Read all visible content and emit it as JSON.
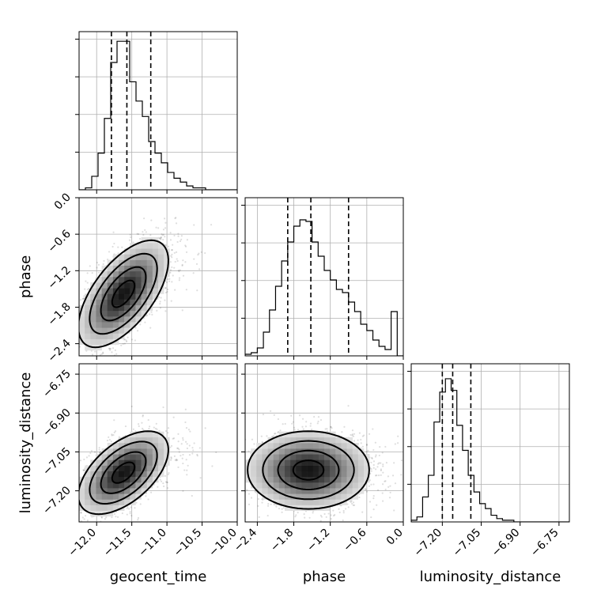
{
  "chart_data": {
    "type": "corner",
    "parameters": [
      "geocent_time",
      "phase",
      "luminosity_distance"
    ],
    "axes": {
      "geocent_time": {
        "label": "geocent_time",
        "range": [
          -12.25,
          -10.0
        ],
        "ticks": [
          -12.0,
          -11.5,
          -11.0,
          -10.5,
          -10.0
        ],
        "tick_labels": [
          "−12.0",
          "−11.5",
          "−11.0",
          "−10.5",
          "−10.0"
        ]
      },
      "phase": {
        "label": "phase",
        "range": [
          -2.6,
          0.0
        ],
        "ticks": [
          -2.4,
          -1.8,
          -1.2,
          -0.6,
          0.0
        ],
        "tick_labels": [
          "−2.4",
          "−1.8",
          "−1.2",
          "−0.6",
          "0.0"
        ]
      },
      "luminosity_distance": {
        "label": "luminosity_distance",
        "range": [
          -7.32,
          -6.71
        ],
        "ticks": [
          -7.2,
          -7.05,
          -6.9,
          -6.75
        ],
        "tick_labels": [
          "−7.20",
          "−7.05",
          "−6.90",
          "−6.75"
        ]
      }
    },
    "histograms": {
      "geocent_time": {
        "bin_edges": [
          -12.25,
          -12.16,
          -12.07,
          -11.98,
          -11.89,
          -11.8,
          -11.71,
          -11.62,
          -11.53,
          -11.44,
          -11.35,
          -11.26,
          -11.17,
          -11.08,
          -10.99,
          -10.9,
          -10.81,
          -10.72,
          -10.63,
          -10.54,
          -10.45,
          -10.36,
          -10.27,
          -10.18,
          -10.09,
          -10.0
        ],
        "counts": [
          0,
          1,
          7,
          19,
          37,
          66,
          77,
          77,
          56,
          46,
          38,
          25,
          19,
          14,
          9,
          6,
          4,
          2,
          1,
          1,
          0,
          0,
          0,
          0,
          0
        ],
        "quantiles": [
          -11.79,
          -11.57,
          -11.23
        ],
        "ymax": 82
      },
      "phase": {
        "bin_edges": [
          -2.6,
          -2.5,
          -2.4,
          -2.3,
          -2.2,
          -2.1,
          -2.0,
          -1.9,
          -1.8,
          -1.7,
          -1.6,
          -1.5,
          -1.4,
          -1.3,
          -1.2,
          -1.1,
          -1.0,
          -0.9,
          -0.8,
          -0.7,
          -0.6,
          -0.5,
          -0.4,
          -0.3,
          -0.2,
          -0.1,
          0.0
        ],
        "counts": [
          1,
          2,
          5,
          15,
          29,
          44,
          60,
          72,
          82,
          86,
          85,
          72,
          63,
          54,
          48,
          42,
          40,
          34,
          28,
          20,
          16,
          10,
          6,
          4,
          28,
          0
        ],
        "quantiles": [
          -1.9,
          -1.52,
          -0.9
        ],
        "ymax": 100
      },
      "luminosity_distance": {
        "bin_edges": [
          -7.32,
          -7.298,
          -7.276,
          -7.254,
          -7.232,
          -7.21,
          -7.188,
          -7.166,
          -7.144,
          -7.122,
          -7.1,
          -7.078,
          -7.056,
          -7.034,
          -7.012,
          -6.99,
          -6.968,
          -6.946,
          -6.924,
          -6.902,
          -6.88,
          -6.858,
          -6.836,
          -6.814,
          -6.792,
          -6.77,
          -6.71
        ],
        "counts": [
          1,
          3,
          15,
          28,
          60,
          78,
          86,
          79,
          58,
          43,
          28,
          18,
          11,
          8,
          4,
          2,
          1,
          1,
          0,
          0,
          0,
          0,
          0,
          0,
          0,
          0
        ],
        "quantiles": [
          -7.2,
          -7.16,
          -7.09
        ],
        "ymax": 95
      }
    },
    "joint": [
      {
        "x": "geocent_time",
        "y": "phase",
        "mean": [
          -11.62,
          -1.58
        ],
        "std": [
          0.32,
          0.44
        ],
        "rho": 0.62,
        "contours_sigma": [
          0.5,
          1.0,
          1.5,
          2.0
        ]
      },
      {
        "x": "geocent_time",
        "y": "luminosity_distance",
        "mean": [
          -11.62,
          -7.13
        ],
        "std": [
          0.32,
          0.08
        ],
        "rho": 0.55,
        "contours_sigma": [
          0.5,
          1.0,
          1.5,
          2.0
        ]
      },
      {
        "x": "phase",
        "y": "luminosity_distance",
        "mean": [
          -1.56,
          -7.12
        ],
        "std": [
          0.5,
          0.075
        ],
        "rho": 0.0,
        "contours_sigma": [
          0.5,
          1.0,
          1.5,
          2.0
        ]
      }
    ],
    "grid": true
  }
}
